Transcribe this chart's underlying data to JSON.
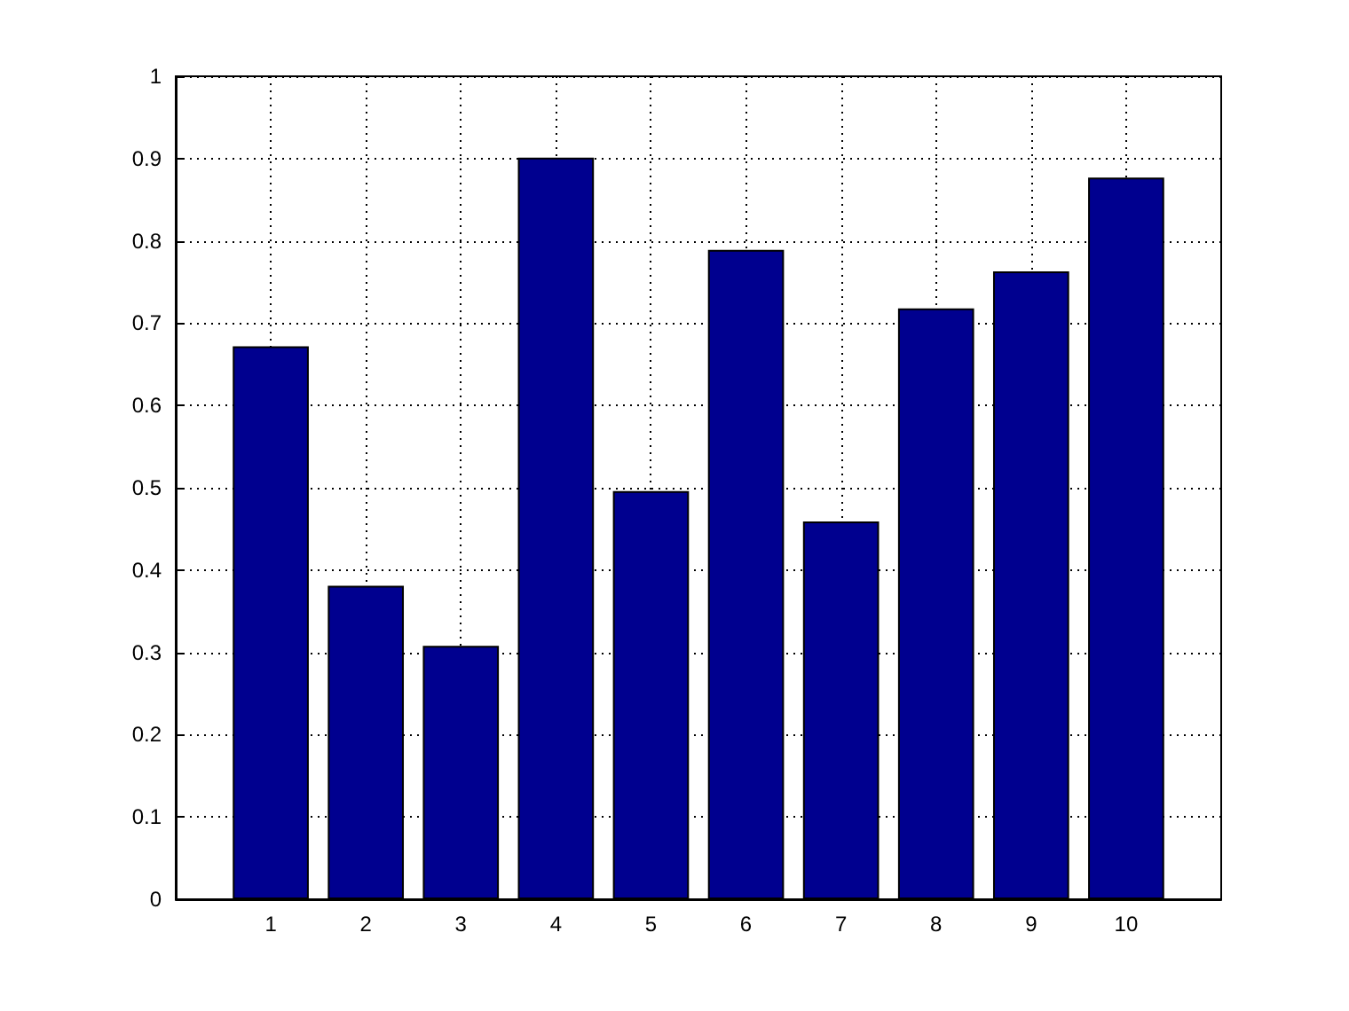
{
  "chart_data": {
    "type": "bar",
    "x": [
      1,
      2,
      3,
      4,
      5,
      6,
      7,
      8,
      9,
      10
    ],
    "values": [
      0.672,
      0.381,
      0.308,
      0.901,
      0.496,
      0.789,
      0.459,
      0.718,
      0.763,
      0.877
    ],
    "color": "#00008f",
    "xlim": [
      0,
      11
    ],
    "xticks": [
      1,
      2,
      3,
      4,
      5,
      6,
      7,
      8,
      9,
      10
    ],
    "ylim": [
      0,
      1
    ],
    "yticks": [
      0,
      0.1,
      0.2,
      0.3,
      0.4,
      0.5,
      0.6,
      0.7,
      0.8,
      0.9,
      1
    ],
    "grid": true
  }
}
